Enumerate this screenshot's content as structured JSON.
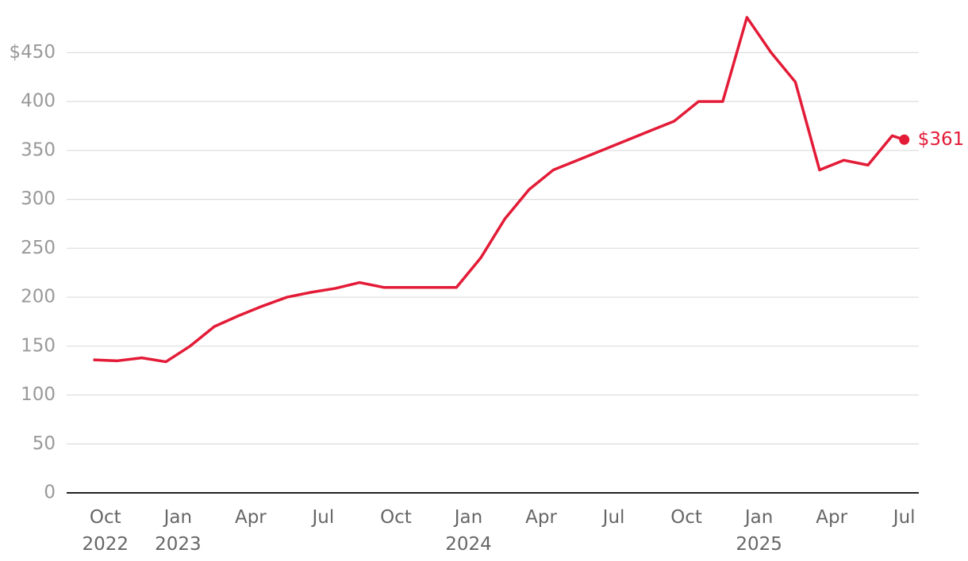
{
  "chart_data": {
    "type": "line",
    "x": [
      0,
      1,
      2,
      3,
      4,
      5,
      6,
      7,
      8,
      9,
      10,
      11,
      12,
      13,
      14,
      15,
      16,
      17,
      18,
      19,
      20,
      21,
      22,
      23,
      24,
      25,
      26,
      27,
      28,
      29,
      30,
      31,
      32,
      33,
      33.5
    ],
    "series": [
      {
        "color": "#e31b37",
        "values": [
          136,
          135,
          138,
          134,
          150,
          170,
          181,
          191,
          200,
          205,
          209,
          215,
          210,
          210,
          210,
          210,
          240,
          280,
          310,
          330,
          340,
          350,
          360,
          370,
          380,
          400,
          400,
          486,
          450,
          420,
          330,
          340,
          335,
          365,
          361
        ],
        "value_labels": [
          null,
          null,
          null,
          null,
          null,
          null,
          null,
          null,
          null,
          null,
          null,
          null,
          null,
          null,
          null,
          null,
          null,
          null,
          null,
          null,
          null,
          null,
          null,
          null,
          null,
          null,
          null,
          null,
          null,
          null,
          null,
          null,
          null,
          null,
          "$361"
        ]
      }
    ],
    "xlim": [
      -1.1,
      34.1
    ],
    "xticks": [
      {
        "value": 0.5,
        "label": "Oct\n2022"
      },
      {
        "value": 3.5,
        "label": "Jan\n2023"
      },
      {
        "value": 6.5,
        "label": "Apr"
      },
      {
        "value": 9.5,
        "label": "Jul"
      },
      {
        "value": 12.5,
        "label": "Oct"
      },
      {
        "value": 15.5,
        "label": "Jan\n2024"
      },
      {
        "value": 18.5,
        "label": "Apr"
      },
      {
        "value": 21.5,
        "label": "Jul"
      },
      {
        "value": 24.5,
        "label": "Oct"
      },
      {
        "value": 27.5,
        "label": "Jan\n2025"
      },
      {
        "value": 30.5,
        "label": "Apr"
      },
      {
        "value": 33.5,
        "label": "Jul"
      }
    ],
    "ylim": [
      0,
      490
    ],
    "yticks": [
      0,
      50,
      100,
      150,
      200,
      250,
      300,
      350,
      400,
      {
        "value": 450,
        "label": "$450"
      }
    ],
    "grid": true
  }
}
